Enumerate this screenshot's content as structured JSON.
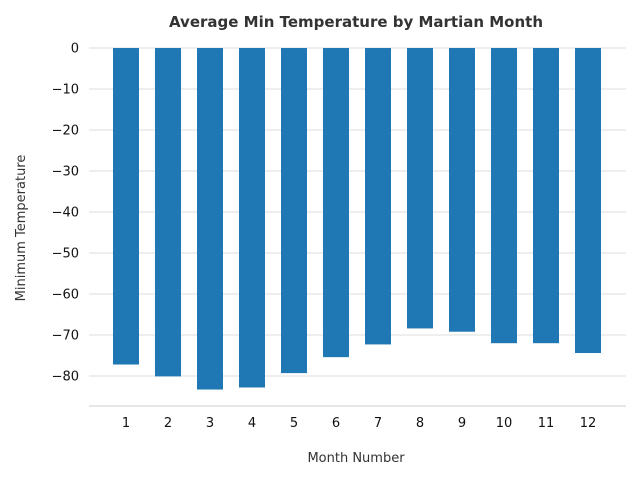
{
  "chart_data": {
    "type": "bar",
    "title": "Average Min Temperature by Martian Month",
    "xlabel": "Month Number",
    "ylabel": "Minimum Temperature",
    "categories": [
      "1",
      "2",
      "3",
      "4",
      "5",
      "6",
      "7",
      "8",
      "9",
      "10",
      "11",
      "12"
    ],
    "values": [
      -77.2,
      -80.1,
      -83.3,
      -82.8,
      -79.3,
      -75.4,
      -72.3,
      -68.4,
      -69.2,
      -72.0,
      -72.0,
      -74.4
    ],
    "ylim": [
      -87.5,
      0
    ],
    "yticks": [
      0,
      -10,
      -20,
      -30,
      -40,
      -50,
      -60,
      -70,
      -80
    ],
    "ytick_labels": [
      "0",
      "−10",
      "−20",
      "−30",
      "−40",
      "−50",
      "−60",
      "−70",
      "−80"
    ],
    "bar_color": "#1f77b4",
    "grid": true
  }
}
